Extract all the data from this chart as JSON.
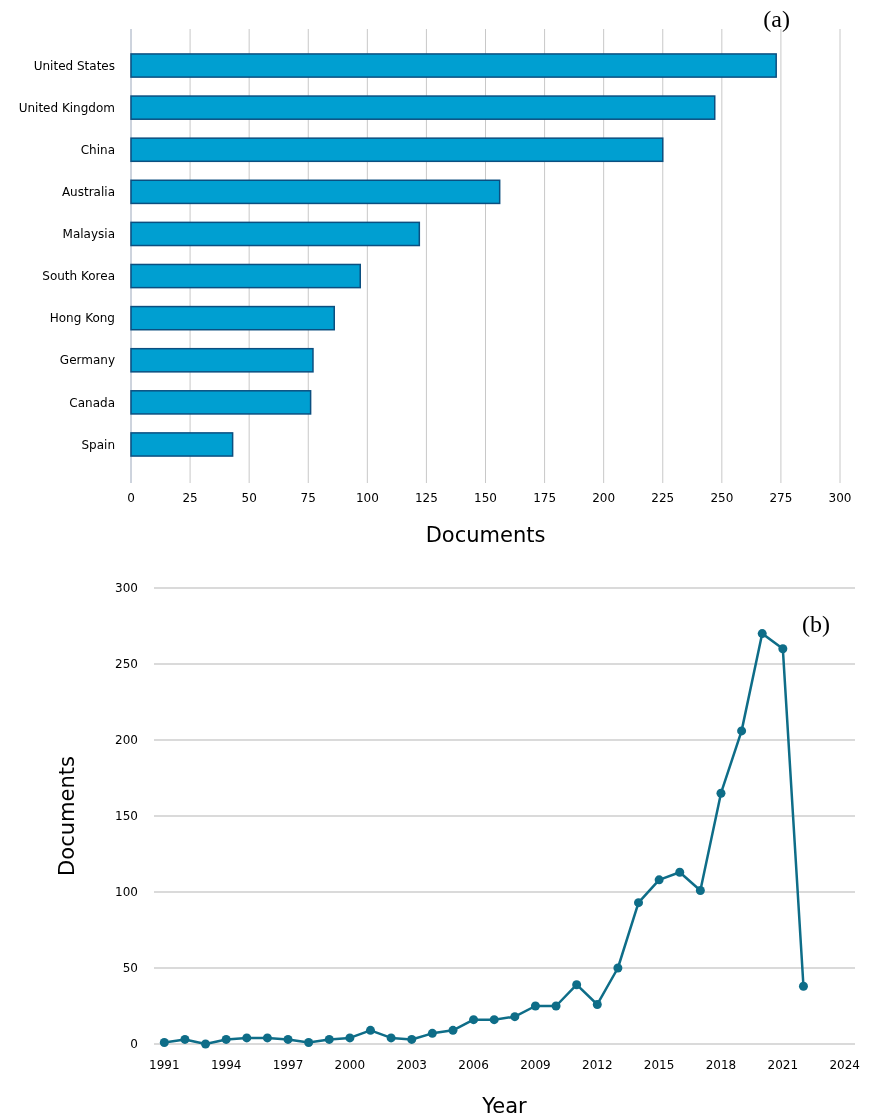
{
  "chart_data": [
    {
      "type": "bar",
      "orientation": "horizontal",
      "categories": [
        "United States",
        "United Kingdom",
        "China",
        "Australia",
        "Malaysia",
        "South Korea",
        "Hong Kong",
        "Germany",
        "Canada",
        "Spain"
      ],
      "values": [
        273,
        247,
        225,
        156,
        122,
        97,
        86,
        77,
        76,
        43
      ],
      "color": "#009fd1",
      "xlabel": "Documents",
      "xlim": [
        0,
        300
      ],
      "xticks": [
        0,
        25,
        50,
        75,
        100,
        125,
        150,
        175,
        200,
        225,
        250,
        275,
        300
      ],
      "grid": "x",
      "annotations": [
        "(a)"
      ]
    },
    {
      "type": "line",
      "x": [
        1991,
        1992,
        1993,
        1994,
        1995,
        1996,
        1997,
        1998,
        1999,
        2000,
        2001,
        2002,
        2003,
        2004,
        2005,
        2006,
        2007,
        2008,
        2009,
        2010,
        2011,
        2012,
        2013,
        2014,
        2015,
        2016,
        2017,
        2018,
        2019,
        2020,
        2021,
        2022
      ],
      "values": [
        1,
        3,
        0,
        3,
        4,
        4,
        3,
        1,
        3,
        4,
        9,
        4,
        3,
        7,
        9,
        16,
        16,
        18,
        25,
        25,
        39,
        26,
        50,
        93,
        108,
        113,
        101,
        165,
        206,
        270,
        260,
        38
      ],
      "color": "#0e6d88",
      "marker": "circle",
      "line_style": "solid",
      "xlabel": "Year",
      "ylabel": "Documents",
      "xlim": [
        1990.5,
        2024.5
      ],
      "xticks": [
        1991,
        1994,
        1997,
        2000,
        2003,
        2006,
        2009,
        2012,
        2015,
        2018,
        2021,
        2024
      ],
      "ylim": [
        0,
        300
      ],
      "yticks": [
        0,
        50,
        100,
        150,
        200,
        250,
        300
      ],
      "grid": "y",
      "annotations": [
        "(b)"
      ]
    }
  ]
}
